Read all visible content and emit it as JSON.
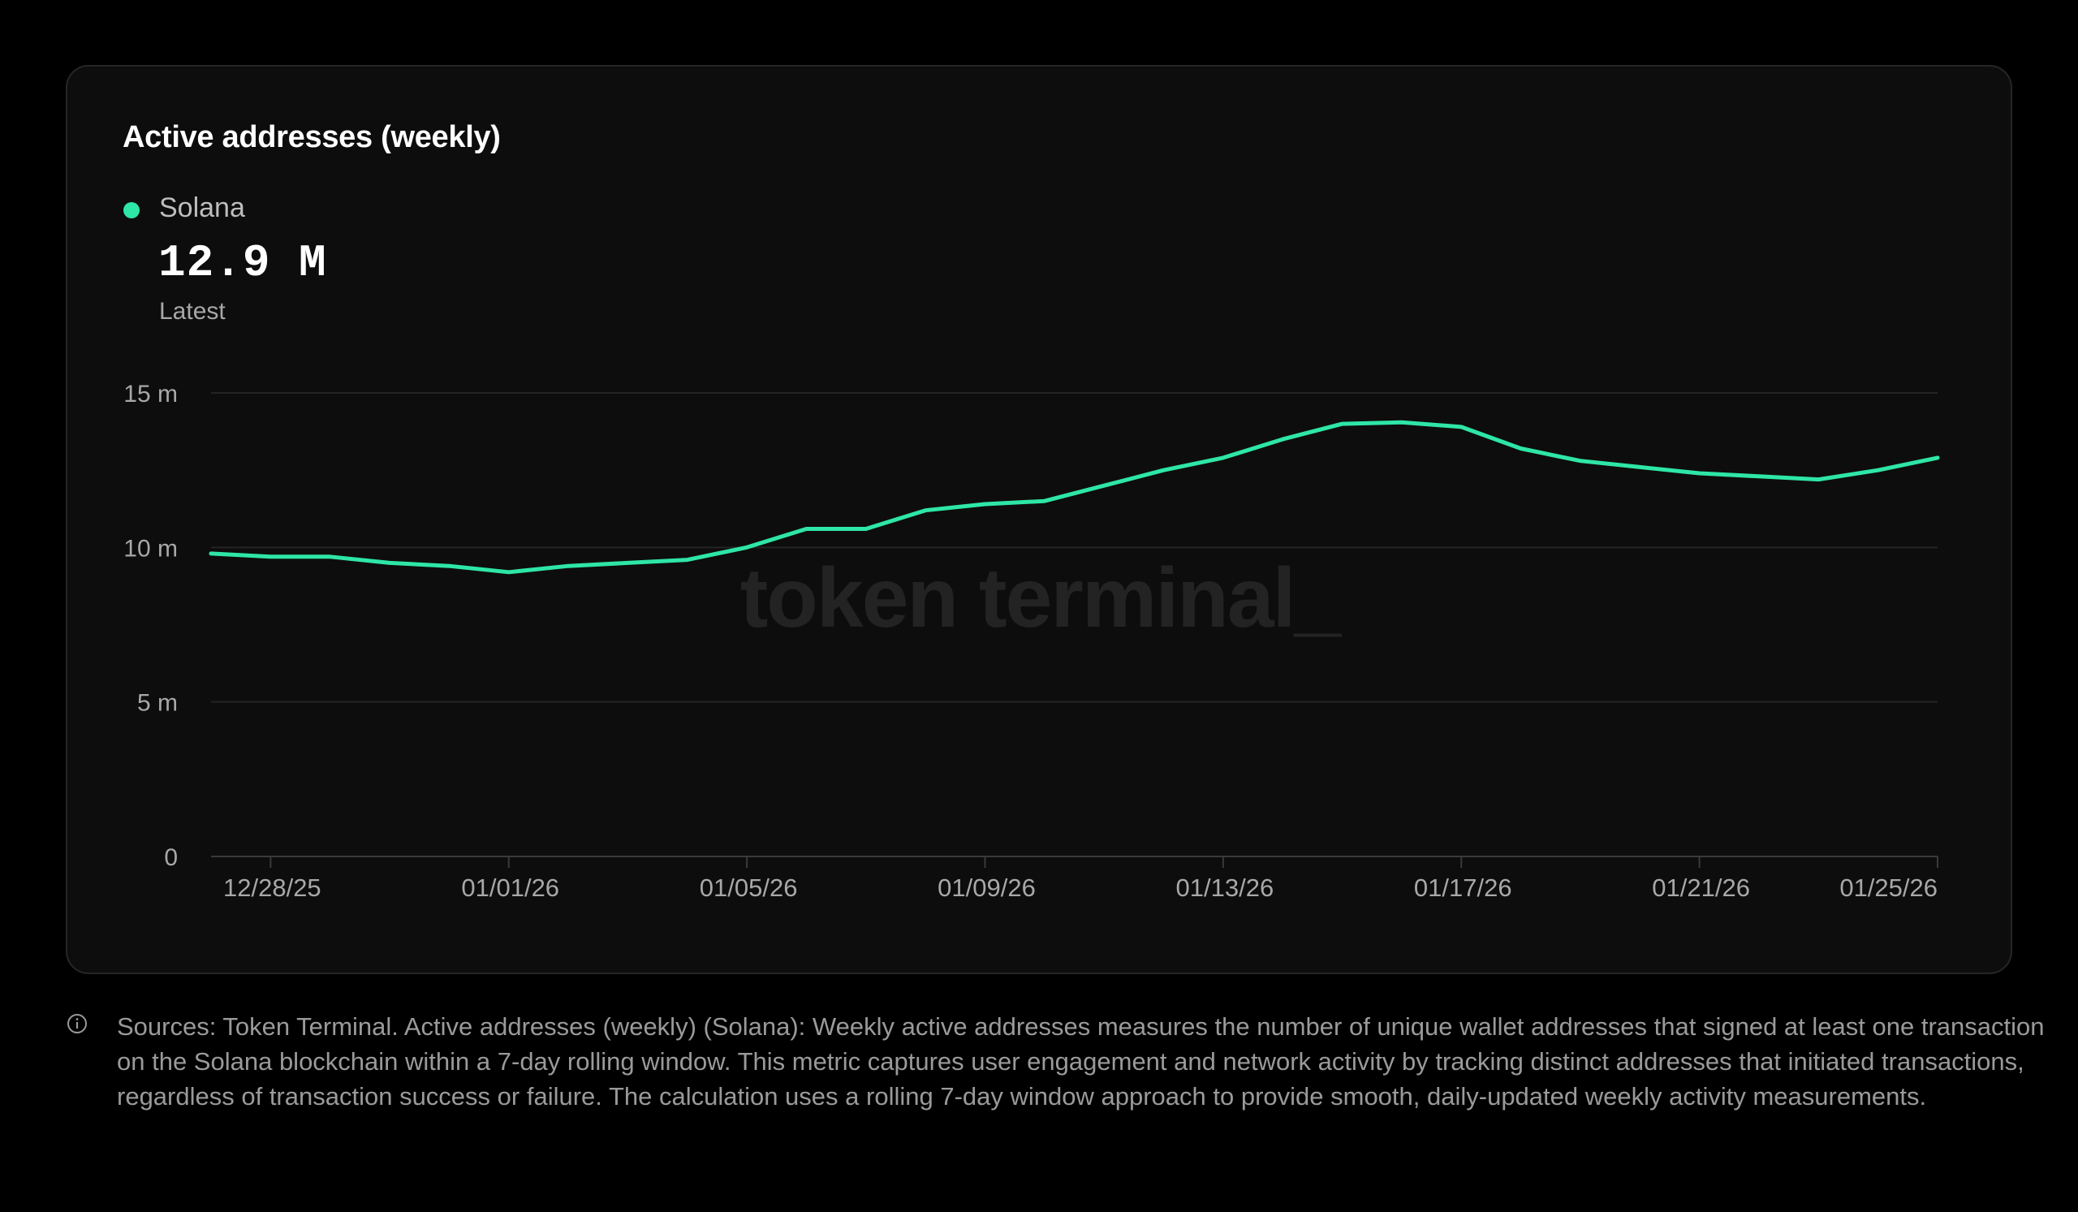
{
  "card": {
    "title": "Active addresses (weekly)",
    "legend": {
      "label": "Solana",
      "color": "#2ee6a6"
    },
    "latest": {
      "value": "12.9 M",
      "caption": "Latest"
    },
    "watermark": "token terminal_"
  },
  "chart_data": {
    "type": "line",
    "title": "Active addresses (weekly)",
    "xlabel": "",
    "ylabel": "",
    "ylim": [
      0,
      15
    ],
    "yticks": [
      0,
      5,
      10,
      15
    ],
    "ytick_labels": [
      "0",
      "5 m",
      "10 m",
      "15 m"
    ],
    "grid": true,
    "legend_position": "top-left",
    "x": [
      "12/27/25",
      "12/28/25",
      "12/29/25",
      "12/30/25",
      "12/31/25",
      "01/01/26",
      "01/02/26",
      "01/03/26",
      "01/04/26",
      "01/05/26",
      "01/06/26",
      "01/07/26",
      "01/08/26",
      "01/09/26",
      "01/10/26",
      "01/11/26",
      "01/12/26",
      "01/13/26",
      "01/14/26",
      "01/15/26",
      "01/16/26",
      "01/17/26",
      "01/18/26",
      "01/19/26",
      "01/20/26",
      "01/21/26",
      "01/22/26",
      "01/23/26",
      "01/24/26",
      "01/25/26"
    ],
    "xticks": [
      "12/28/25",
      "01/01/26",
      "01/05/26",
      "01/09/26",
      "01/13/26",
      "01/17/26",
      "01/21/26",
      "01/25/26"
    ],
    "series": [
      {
        "name": "Solana",
        "color": "#2ee6a6",
        "values": [
          9.8,
          9.7,
          9.7,
          9.5,
          9.4,
          9.2,
          9.4,
          9.5,
          9.6,
          10.0,
          10.6,
          10.6,
          11.2,
          11.4,
          11.5,
          12.0,
          12.5,
          12.9,
          13.5,
          14.0,
          14.05,
          13.9,
          13.2,
          12.8,
          12.6,
          12.4,
          12.3,
          12.2,
          12.5,
          12.9
        ]
      }
    ]
  },
  "footer": {
    "text": "Sources: Token Terminal. Active addresses (weekly) (Solana): Weekly active addresses measures the number of unique wallet addresses that signed at least one transaction on the Solana blockchain within a 7-day rolling window. This metric captures user engagement and network activity by tracking distinct addresses that initiated transactions, regardless of transaction success or failure. The calculation uses a rolling 7-day window approach to provide smooth, daily-updated weekly activity measurements.",
    "icon": "info-icon"
  }
}
